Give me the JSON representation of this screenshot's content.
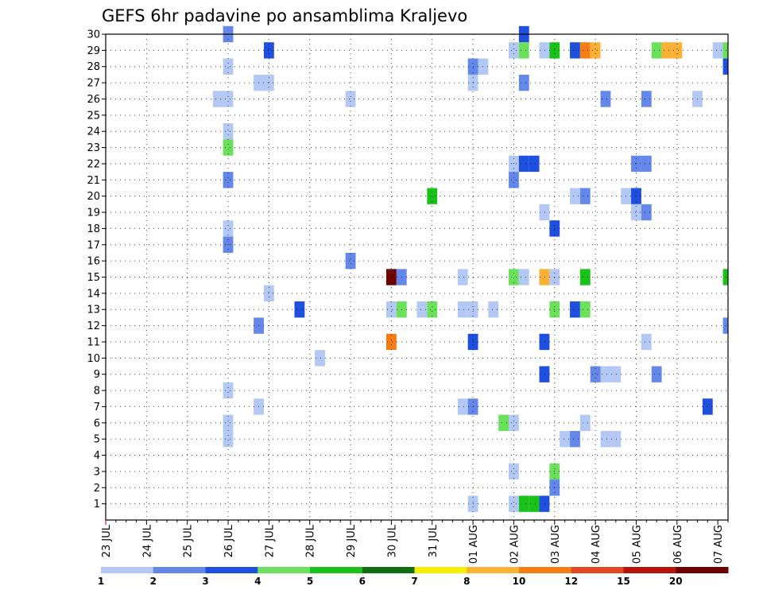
{
  "chart_data": {
    "type": "heatmap",
    "title": "GEFS 6hr padavine po ansamblima Kraljevo",
    "xlabel": "",
    "ylabel": "",
    "x_tick_labels": [
      "23 JUL",
      "24 JUL",
      "25 JUL",
      "26 JUL",
      "27 JUL",
      "28 JUL",
      "29 JUL",
      "30 JUL",
      "31 JUL",
      "01 AUG",
      "02 AUG",
      "03 AUG",
      "04 AUG",
      "05 AUG",
      "06 AUG",
      "07 AUG"
    ],
    "x_range_days": [
      0,
      15.25
    ],
    "y_ticks": [
      1,
      2,
      3,
      4,
      5,
      6,
      7,
      8,
      9,
      10,
      11,
      12,
      13,
      14,
      15,
      16,
      17,
      18,
      19,
      20,
      21,
      22,
      23,
      24,
      25,
      26,
      27,
      28,
      29,
      30
    ],
    "y_range": [
      0,
      30
    ],
    "grid": true,
    "legend_position": "bottom colorbar",
    "colorbar": {
      "labels": [
        "1",
        "2",
        "3",
        "4",
        "5",
        "6",
        "7",
        "8",
        "10",
        "12",
        "15",
        "20"
      ],
      "colors": [
        "#b4c8f5",
        "#6488ea",
        "#1f4fdf",
        "#6be05a",
        "#19c219",
        "#0f6e10",
        "#f5f000",
        "#fcb034",
        "#f57d14",
        "#e1481e",
        "#b4140a",
        "#6e0000"
      ]
    },
    "cells": [
      {
        "x": 3.0,
        "y": 30,
        "c": 1
      },
      {
        "x": 10.25,
        "y": 30,
        "c": 2
      },
      {
        "x": 4.0,
        "y": 29,
        "c": 2
      },
      {
        "x": 10.0,
        "y": 29,
        "c": 0
      },
      {
        "x": 10.25,
        "y": 29,
        "c": 3
      },
      {
        "x": 10.75,
        "y": 29,
        "c": 0
      },
      {
        "x": 11.0,
        "y": 29,
        "c": 4
      },
      {
        "x": 11.5,
        "y": 29,
        "c": 2
      },
      {
        "x": 11.75,
        "y": 29,
        "c": 8
      },
      {
        "x": 12.0,
        "y": 29,
        "c": 7
      },
      {
        "x": 13.5,
        "y": 29,
        "c": 3
      },
      {
        "x": 13.75,
        "y": 29,
        "c": 7
      },
      {
        "x": 14.0,
        "y": 29,
        "c": 7
      },
      {
        "x": 15.0,
        "y": 29,
        "c": 0
      },
      {
        "x": 15.25,
        "y": 29,
        "c": 3
      },
      {
        "x": 3.0,
        "y": 28,
        "c": 0
      },
      {
        "x": 9.0,
        "y": 28,
        "c": 1
      },
      {
        "x": 9.25,
        "y": 28,
        "c": 0
      },
      {
        "x": 15.25,
        "y": 28,
        "c": 2
      },
      {
        "x": 3.75,
        "y": 27,
        "c": 0
      },
      {
        "x": 4.0,
        "y": 27,
        "c": 0
      },
      {
        "x": 9.0,
        "y": 27,
        "c": 0
      },
      {
        "x": 10.25,
        "y": 27,
        "c": 1
      },
      {
        "x": 2.75,
        "y": 26,
        "c": 0
      },
      {
        "x": 3.0,
        "y": 26,
        "c": 0
      },
      {
        "x": 6.0,
        "y": 26,
        "c": 0
      },
      {
        "x": 12.25,
        "y": 26,
        "c": 1
      },
      {
        "x": 13.25,
        "y": 26,
        "c": 1
      },
      {
        "x": 14.5,
        "y": 26,
        "c": 0
      },
      {
        "x": 3.0,
        "y": 24,
        "c": 0
      },
      {
        "x": 3.0,
        "y": 23,
        "c": 3
      },
      {
        "x": 10.0,
        "y": 22,
        "c": 0
      },
      {
        "x": 10.25,
        "y": 22,
        "c": 2
      },
      {
        "x": 10.5,
        "y": 22,
        "c": 2
      },
      {
        "x": 13.0,
        "y": 22,
        "c": 1
      },
      {
        "x": 13.25,
        "y": 22,
        "c": 1
      },
      {
        "x": 3.0,
        "y": 21,
        "c": 1
      },
      {
        "x": 10.0,
        "y": 21,
        "c": 1
      },
      {
        "x": 8.0,
        "y": 20,
        "c": 4
      },
      {
        "x": 11.5,
        "y": 20,
        "c": 0
      },
      {
        "x": 11.75,
        "y": 20,
        "c": 1
      },
      {
        "x": 12.75,
        "y": 20,
        "c": 0
      },
      {
        "x": 13.0,
        "y": 20,
        "c": 2
      },
      {
        "x": 10.75,
        "y": 19,
        "c": 0
      },
      {
        "x": 13.0,
        "y": 19,
        "c": 0
      },
      {
        "x": 13.25,
        "y": 19,
        "c": 1
      },
      {
        "x": 3.0,
        "y": 18,
        "c": 0
      },
      {
        "x": 11.0,
        "y": 18,
        "c": 2
      },
      {
        "x": 3.0,
        "y": 17,
        "c": 1
      },
      {
        "x": 6.0,
        "y": 16,
        "c": 1
      },
      {
        "x": 7.0,
        "y": 15,
        "c": 11
      },
      {
        "x": 7.25,
        "y": 15,
        "c": 1
      },
      {
        "x": 8.75,
        "y": 15,
        "c": 0
      },
      {
        "x": 10.0,
        "y": 15,
        "c": 3
      },
      {
        "x": 10.25,
        "y": 15,
        "c": 0
      },
      {
        "x": 10.75,
        "y": 15,
        "c": 7
      },
      {
        "x": 11.0,
        "y": 15,
        "c": 0
      },
      {
        "x": 11.75,
        "y": 15,
        "c": 4
      },
      {
        "x": 15.25,
        "y": 15,
        "c": 4
      },
      {
        "x": 4.0,
        "y": 14,
        "c": 0
      },
      {
        "x": 4.75,
        "y": 13,
        "c": 2
      },
      {
        "x": 7.0,
        "y": 13,
        "c": 0
      },
      {
        "x": 7.25,
        "y": 13,
        "c": 3
      },
      {
        "x": 7.75,
        "y": 13,
        "c": 0
      },
      {
        "x": 8.0,
        "y": 13,
        "c": 3
      },
      {
        "x": 8.75,
        "y": 13,
        "c": 0
      },
      {
        "x": 9.0,
        "y": 13,
        "c": 0
      },
      {
        "x": 9.5,
        "y": 13,
        "c": 0
      },
      {
        "x": 11.0,
        "y": 13,
        "c": 3
      },
      {
        "x": 11.5,
        "y": 13,
        "c": 2
      },
      {
        "x": 11.75,
        "y": 13,
        "c": 3
      },
      {
        "x": 3.75,
        "y": 12,
        "c": 1
      },
      {
        "x": 15.25,
        "y": 12,
        "c": 1
      },
      {
        "x": 7.0,
        "y": 11,
        "c": 8
      },
      {
        "x": 9.0,
        "y": 11,
        "c": 2
      },
      {
        "x": 10.75,
        "y": 11,
        "c": 2
      },
      {
        "x": 13.25,
        "y": 11,
        "c": 0
      },
      {
        "x": 5.25,
        "y": 10,
        "c": 0
      },
      {
        "x": 10.75,
        "y": 9,
        "c": 2
      },
      {
        "x": 12.0,
        "y": 9,
        "c": 1
      },
      {
        "x": 12.25,
        "y": 9,
        "c": 0
      },
      {
        "x": 12.5,
        "y": 9,
        "c": 0
      },
      {
        "x": 13.5,
        "y": 9,
        "c": 1
      },
      {
        "x": 3.0,
        "y": 8,
        "c": 0
      },
      {
        "x": 3.75,
        "y": 7,
        "c": 0
      },
      {
        "x": 8.75,
        "y": 7,
        "c": 0
      },
      {
        "x": 9.0,
        "y": 7,
        "c": 1
      },
      {
        "x": 14.75,
        "y": 7,
        "c": 2
      },
      {
        "x": 3.0,
        "y": 6,
        "c": 0
      },
      {
        "x": 9.75,
        "y": 6,
        "c": 3
      },
      {
        "x": 10.0,
        "y": 6,
        "c": 0
      },
      {
        "x": 11.75,
        "y": 6,
        "c": 0
      },
      {
        "x": 3.0,
        "y": 5,
        "c": 0
      },
      {
        "x": 11.25,
        "y": 5,
        "c": 0
      },
      {
        "x": 11.5,
        "y": 5,
        "c": 1
      },
      {
        "x": 12.25,
        "y": 5,
        "c": 0
      },
      {
        "x": 12.5,
        "y": 5,
        "c": 0
      },
      {
        "x": 10.0,
        "y": 3,
        "c": 0
      },
      {
        "x": 11.0,
        "y": 3,
        "c": 3
      },
      {
        "x": 11.0,
        "y": 2,
        "c": 1
      },
      {
        "x": 9.0,
        "y": 1,
        "c": 0
      },
      {
        "x": 10.0,
        "y": 1,
        "c": 0
      },
      {
        "x": 10.25,
        "y": 1,
        "c": 4
      },
      {
        "x": 10.5,
        "y": 1,
        "c": 4
      },
      {
        "x": 10.75,
        "y": 1,
        "c": 2
      }
    ]
  }
}
